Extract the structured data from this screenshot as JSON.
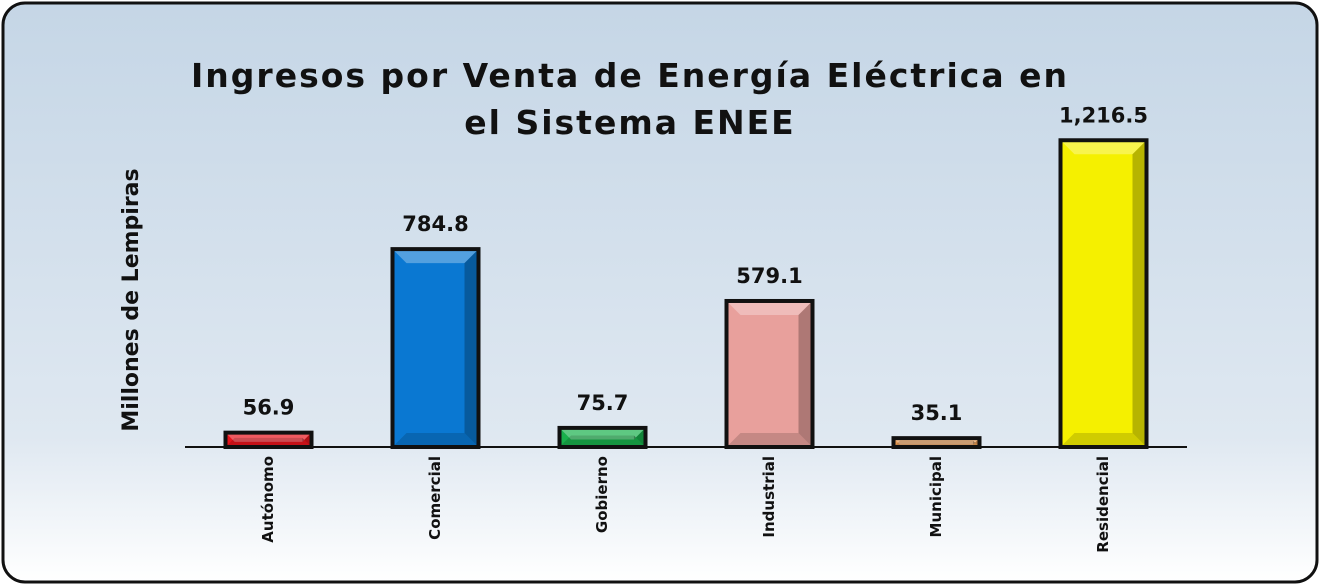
{
  "chart_data": {
    "type": "bar",
    "title": "Ingresos por Venta de Energía Eléctrica en el Sistema ENEE",
    "y_label": "Millones de Lempiras",
    "categories": [
      "Autónomo",
      "Comercial",
      "Gobierno",
      "Industrial",
      "Municipal",
      "Residencial"
    ],
    "values": [
      56.9,
      784.8,
      75.7,
      579.1,
      35.1,
      1216.5
    ],
    "value_labels": [
      "56.9",
      "784.8",
      "75.7",
      "579.1",
      "35.1",
      "1,216.5"
    ],
    "colors": [
      "#e8141c",
      "#0a78d2",
      "#19b04c",
      "#e8a09c",
      "#e89a52",
      "#f5f000"
    ],
    "ylim": [
      0,
      1400
    ]
  }
}
